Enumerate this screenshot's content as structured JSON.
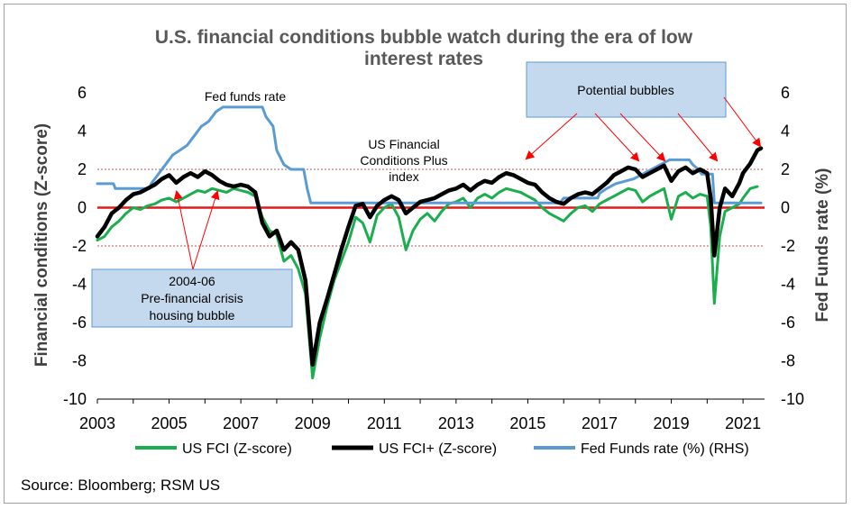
{
  "chart_data": {
    "type": "line",
    "title_lines": [
      "U.S. financial conditions bubble watch during the era of low",
      "interest rates"
    ],
    "ylabel": "Financial conditions (Z-score)",
    "y2label": "Fed Funds rate (%)",
    "ylim": [
      -10,
      6
    ],
    "y2lim": [
      -10,
      6
    ],
    "y_ticks": [
      6,
      4,
      2,
      0,
      -2,
      -4,
      -6,
      -8,
      -10
    ],
    "xlim": [
      2003,
      2021.6
    ],
    "x_ticks": [
      2003,
      2005,
      2007,
      2009,
      2011,
      2013,
      2015,
      2017,
      2019,
      2021
    ],
    "reference_lines": [
      {
        "y": 0,
        "style": "solid",
        "color": "#e31a1c"
      },
      {
        "y": 2,
        "style": "dotted",
        "color": "#c0504d"
      },
      {
        "y": -2,
        "style": "dotted",
        "color": "#c0504d"
      }
    ],
    "series": [
      {
        "name": "US FCI (Z-score)",
        "color": "#1aae4e",
        "points": [
          [
            2003.0,
            -1.7
          ],
          [
            2003.2,
            -1.5
          ],
          [
            2003.4,
            -1.0
          ],
          [
            2003.6,
            -0.7
          ],
          [
            2003.8,
            -0.3
          ],
          [
            2004.0,
            0.0
          ],
          [
            2004.2,
            -0.1
          ],
          [
            2004.4,
            0.1
          ],
          [
            2004.6,
            0.2
          ],
          [
            2004.8,
            0.4
          ],
          [
            2005.0,
            0.5
          ],
          [
            2005.2,
            0.3
          ],
          [
            2005.4,
            0.5
          ],
          [
            2005.6,
            0.7
          ],
          [
            2005.8,
            0.9
          ],
          [
            2006.0,
            0.8
          ],
          [
            2006.2,
            1.0
          ],
          [
            2006.4,
            0.9
          ],
          [
            2006.6,
            0.8
          ],
          [
            2006.8,
            1.0
          ],
          [
            2007.0,
            0.9
          ],
          [
            2007.2,
            0.8
          ],
          [
            2007.4,
            0.6
          ],
          [
            2007.6,
            -0.5
          ],
          [
            2007.8,
            -1.2
          ],
          [
            2008.0,
            -1.4
          ],
          [
            2008.2,
            -2.8
          ],
          [
            2008.4,
            -2.5
          ],
          [
            2008.6,
            -3.2
          ],
          [
            2008.8,
            -4.5
          ],
          [
            2009.0,
            -8.9
          ],
          [
            2009.2,
            -6.8
          ],
          [
            2009.4,
            -5.2
          ],
          [
            2009.6,
            -3.8
          ],
          [
            2009.8,
            -2.8
          ],
          [
            2010.0,
            -1.8
          ],
          [
            2010.2,
            -0.5
          ],
          [
            2010.4,
            -0.8
          ],
          [
            2010.6,
            -1.8
          ],
          [
            2010.8,
            -0.4
          ],
          [
            2011.0,
            0.0
          ],
          [
            2011.2,
            0.2
          ],
          [
            2011.4,
            -0.5
          ],
          [
            2011.6,
            -2.2
          ],
          [
            2011.8,
            -1.2
          ],
          [
            2012.0,
            -0.6
          ],
          [
            2012.2,
            -0.3
          ],
          [
            2012.4,
            -0.7
          ],
          [
            2012.6,
            -0.2
          ],
          [
            2012.8,
            0.2
          ],
          [
            2013.0,
            0.3
          ],
          [
            2013.2,
            0.5
          ],
          [
            2013.4,
            0.0
          ],
          [
            2013.6,
            0.5
          ],
          [
            2013.8,
            0.7
          ],
          [
            2014.0,
            0.5
          ],
          [
            2014.2,
            0.8
          ],
          [
            2014.4,
            1.0
          ],
          [
            2014.6,
            0.9
          ],
          [
            2014.8,
            0.8
          ],
          [
            2015.0,
            0.6
          ],
          [
            2015.2,
            0.4
          ],
          [
            2015.4,
            0.0
          ],
          [
            2015.6,
            -0.3
          ],
          [
            2015.8,
            -0.5
          ],
          [
            2016.0,
            -0.7
          ],
          [
            2016.2,
            -0.3
          ],
          [
            2016.4,
            0.0
          ],
          [
            2016.6,
            0.1
          ],
          [
            2016.8,
            -0.2
          ],
          [
            2017.0,
            0.2
          ],
          [
            2017.2,
            0.4
          ],
          [
            2017.4,
            0.6
          ],
          [
            2017.6,
            0.8
          ],
          [
            2017.8,
            1.0
          ],
          [
            2018.0,
            0.9
          ],
          [
            2018.2,
            0.3
          ],
          [
            2018.4,
            0.6
          ],
          [
            2018.6,
            0.8
          ],
          [
            2018.8,
            1.0
          ],
          [
            2019.0,
            -0.6
          ],
          [
            2019.2,
            0.6
          ],
          [
            2019.4,
            0.8
          ],
          [
            2019.6,
            0.5
          ],
          [
            2019.8,
            0.7
          ],
          [
            2020.0,
            0.6
          ],
          [
            2020.1,
            -1.0
          ],
          [
            2020.2,
            -5.0
          ],
          [
            2020.35,
            -1.5
          ],
          [
            2020.5,
            -0.2
          ],
          [
            2020.7,
            0.0
          ],
          [
            2020.9,
            0.2
          ],
          [
            2021.0,
            0.5
          ],
          [
            2021.2,
            1.0
          ],
          [
            2021.4,
            1.1
          ]
        ]
      },
      {
        "name": "US FCI+ (Z-score)",
        "color": "#000000",
        "points": [
          [
            2003.0,
            -1.5
          ],
          [
            2003.2,
            -1.0
          ],
          [
            2003.4,
            -0.3
          ],
          [
            2003.6,
            0.0
          ],
          [
            2003.8,
            0.4
          ],
          [
            2004.0,
            0.7
          ],
          [
            2004.2,
            0.8
          ],
          [
            2004.4,
            1.0
          ],
          [
            2004.6,
            1.2
          ],
          [
            2004.8,
            1.5
          ],
          [
            2005.0,
            1.7
          ],
          [
            2005.2,
            1.3
          ],
          [
            2005.4,
            1.6
          ],
          [
            2005.6,
            1.8
          ],
          [
            2005.8,
            1.6
          ],
          [
            2006.0,
            1.9
          ],
          [
            2006.2,
            1.7
          ],
          [
            2006.4,
            1.4
          ],
          [
            2006.6,
            1.2
          ],
          [
            2006.8,
            1.1
          ],
          [
            2007.0,
            1.2
          ],
          [
            2007.2,
            1.1
          ],
          [
            2007.4,
            0.8
          ],
          [
            2007.6,
            -0.8
          ],
          [
            2007.8,
            -1.5
          ],
          [
            2008.0,
            -1.2
          ],
          [
            2008.2,
            -2.2
          ],
          [
            2008.4,
            -1.8
          ],
          [
            2008.6,
            -2.2
          ],
          [
            2008.8,
            -3.8
          ],
          [
            2009.0,
            -8.2
          ],
          [
            2009.2,
            -6.0
          ],
          [
            2009.4,
            -4.8
          ],
          [
            2009.6,
            -3.5
          ],
          [
            2009.8,
            -2.2
          ],
          [
            2010.0,
            -1.0
          ],
          [
            2010.2,
            0.1
          ],
          [
            2010.4,
            0.2
          ],
          [
            2010.6,
            -0.5
          ],
          [
            2010.8,
            0.1
          ],
          [
            2011.0,
            0.4
          ],
          [
            2011.2,
            0.6
          ],
          [
            2011.4,
            0.4
          ],
          [
            2011.6,
            -0.3
          ],
          [
            2011.8,
            0.0
          ],
          [
            2012.0,
            0.3
          ],
          [
            2012.2,
            0.4
          ],
          [
            2012.4,
            0.5
          ],
          [
            2012.6,
            0.7
          ],
          [
            2012.8,
            0.9
          ],
          [
            2013.0,
            1.0
          ],
          [
            2013.2,
            1.2
          ],
          [
            2013.4,
            0.9
          ],
          [
            2013.6,
            1.2
          ],
          [
            2013.8,
            1.4
          ],
          [
            2014.0,
            1.3
          ],
          [
            2014.2,
            1.6
          ],
          [
            2014.4,
            1.8
          ],
          [
            2014.6,
            1.7
          ],
          [
            2014.8,
            1.5
          ],
          [
            2015.0,
            1.3
          ],
          [
            2015.2,
            1.2
          ],
          [
            2015.4,
            0.8
          ],
          [
            2015.6,
            0.5
          ],
          [
            2015.8,
            0.3
          ],
          [
            2016.0,
            0.2
          ],
          [
            2016.2,
            0.5
          ],
          [
            2016.4,
            0.7
          ],
          [
            2016.6,
            0.8
          ],
          [
            2016.8,
            0.7
          ],
          [
            2017.0,
            1.0
          ],
          [
            2017.2,
            1.3
          ],
          [
            2017.4,
            1.7
          ],
          [
            2017.6,
            1.9
          ],
          [
            2017.8,
            2.1
          ],
          [
            2018.0,
            2.0
          ],
          [
            2018.2,
            1.6
          ],
          [
            2018.4,
            1.8
          ],
          [
            2018.6,
            2.0
          ],
          [
            2018.8,
            2.2
          ],
          [
            2019.0,
            1.4
          ],
          [
            2019.2,
            1.9
          ],
          [
            2019.4,
            2.1
          ],
          [
            2019.6,
            1.8
          ],
          [
            2019.8,
            2.0
          ],
          [
            2020.0,
            1.8
          ],
          [
            2020.1,
            0.5
          ],
          [
            2020.2,
            -2.5
          ],
          [
            2020.35,
            0.0
          ],
          [
            2020.5,
            1.0
          ],
          [
            2020.7,
            0.6
          ],
          [
            2020.9,
            1.3
          ],
          [
            2021.0,
            1.8
          ],
          [
            2021.2,
            2.3
          ],
          [
            2021.4,
            3.0
          ],
          [
            2021.5,
            3.1
          ]
        ]
      },
      {
        "name": "Fed Funds rate (%) (RHS)",
        "color": "#5b9bd5",
        "axis": "right",
        "points": [
          [
            2003.0,
            1.25
          ],
          [
            2003.45,
            1.25
          ],
          [
            2003.5,
            1.0
          ],
          [
            2004.45,
            1.0
          ],
          [
            2004.5,
            1.25
          ],
          [
            2004.7,
            1.75
          ],
          [
            2004.9,
            2.25
          ],
          [
            2005.1,
            2.75
          ],
          [
            2005.3,
            3.0
          ],
          [
            2005.5,
            3.25
          ],
          [
            2005.7,
            3.75
          ],
          [
            2005.9,
            4.25
          ],
          [
            2006.1,
            4.5
          ],
          [
            2006.3,
            5.0
          ],
          [
            2006.5,
            5.25
          ],
          [
            2007.6,
            5.25
          ],
          [
            2007.7,
            4.75
          ],
          [
            2007.8,
            4.5
          ],
          [
            2007.9,
            4.25
          ],
          [
            2008.0,
            3.0
          ],
          [
            2008.2,
            2.25
          ],
          [
            2008.4,
            2.0
          ],
          [
            2008.75,
            2.0
          ],
          [
            2008.85,
            1.0
          ],
          [
            2008.95,
            0.25
          ],
          [
            2015.9,
            0.25
          ],
          [
            2016.0,
            0.5
          ],
          [
            2016.95,
            0.5
          ],
          [
            2017.0,
            0.75
          ],
          [
            2017.2,
            1.0
          ],
          [
            2017.45,
            1.25
          ],
          [
            2017.95,
            1.5
          ],
          [
            2018.2,
            1.75
          ],
          [
            2018.45,
            2.0
          ],
          [
            2018.7,
            2.25
          ],
          [
            2018.95,
            2.5
          ],
          [
            2019.5,
            2.5
          ],
          [
            2019.6,
            2.25
          ],
          [
            2019.75,
            2.0
          ],
          [
            2019.85,
            1.75
          ],
          [
            2020.15,
            1.75
          ],
          [
            2020.2,
            0.25
          ],
          [
            2021.5,
            0.25
          ]
        ]
      }
    ],
    "annotations": {
      "fed_funds_label": "Fed funds rate",
      "fci_plus_label": [
        "US Financial",
        "Conditions Plus",
        "index"
      ],
      "potential_bubbles": "Potential bubbles",
      "housing_box": [
        "2004-06",
        "Pre-financial crisis",
        "housing bubble"
      ],
      "box_color": "#c5d9ee",
      "box_border": "#5b9bd5",
      "arrow_color": "#ff0000"
    },
    "legend": {
      "placement": "bottom",
      "items": [
        "US FCI (Z-score)",
        "US FCI+ (Z-score)",
        "Fed Funds rate (%) (RHS)"
      ]
    },
    "source": "Source: Bloomberg; RSM US"
  }
}
